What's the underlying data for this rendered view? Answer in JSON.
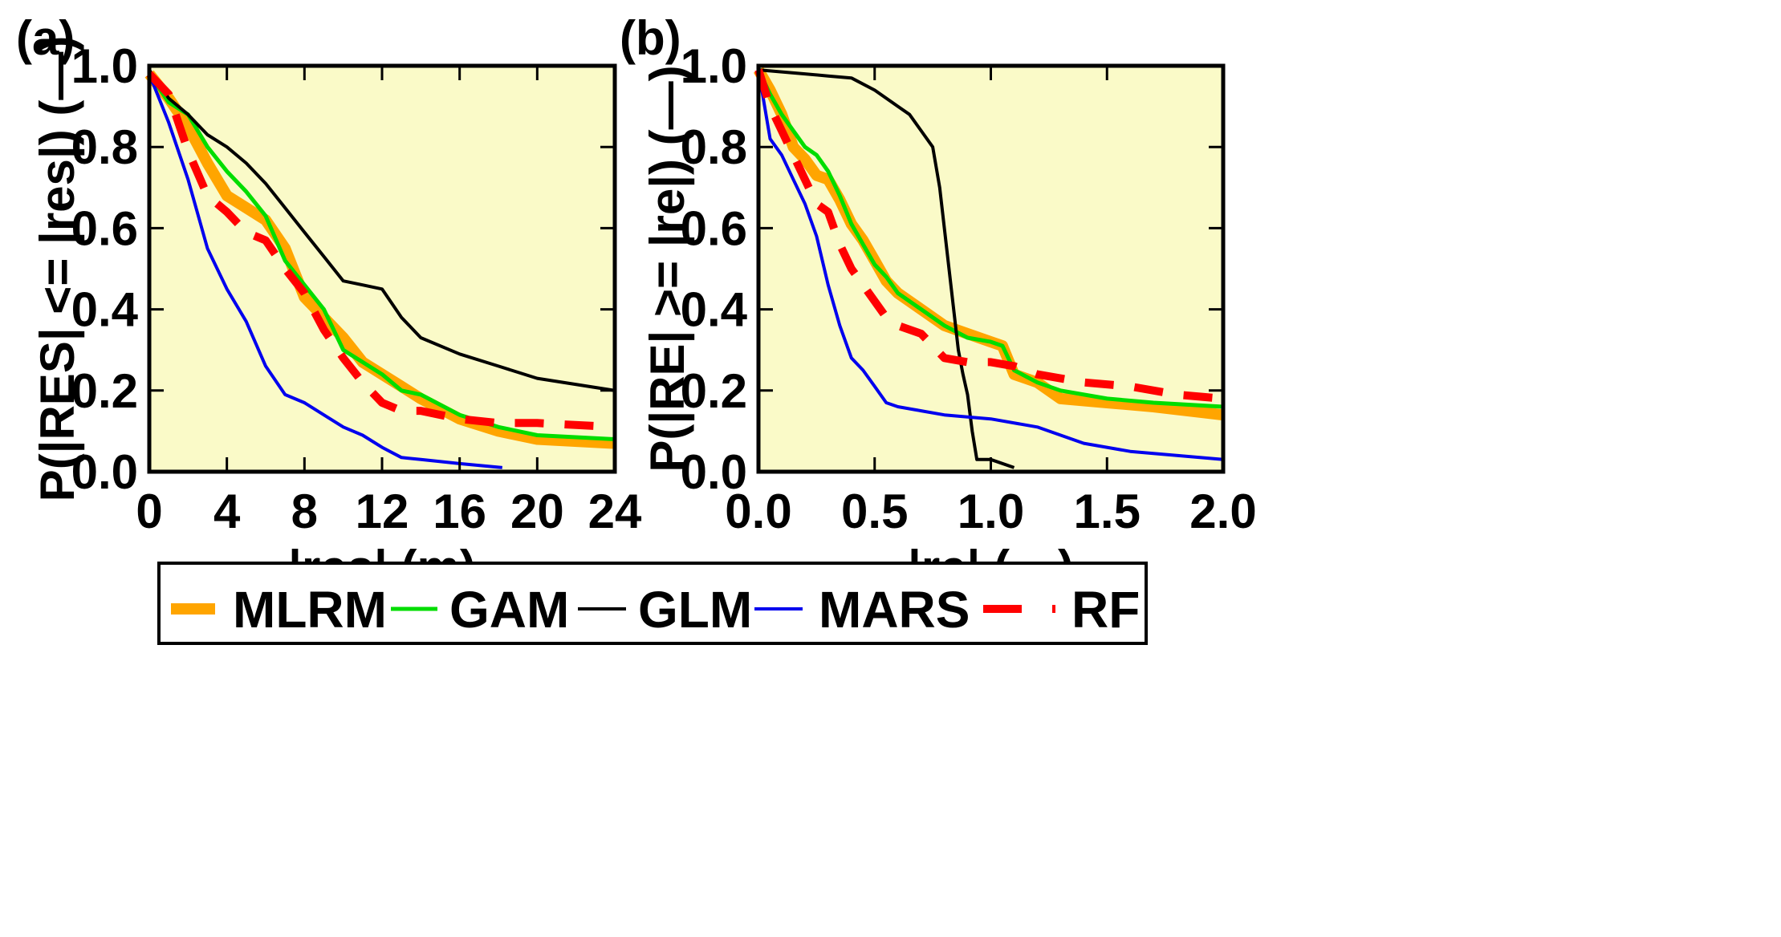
{
  "chart_data": [
    {
      "type": "line",
      "panel_label": "(a)",
      "xlabel": "|res| (m)",
      "ylabel": "P(|RES| <= |res|) (—)",
      "xlim": [
        0,
        24
      ],
      "ylim": [
        0,
        1
      ],
      "xticks": [
        "0",
        "4",
        "8",
        "12",
        "16",
        "20",
        "24"
      ],
      "yticks": [
        "0.0",
        "0.2",
        "0.4",
        "0.6",
        "0.8",
        "1.0"
      ],
      "background": "#fafac8",
      "series": [
        {
          "name": "MLRM",
          "x": [
            0,
            1,
            2,
            3,
            4,
            5,
            6,
            7,
            8,
            9,
            10,
            11,
            12,
            13,
            14,
            16,
            18,
            20,
            24
          ],
          "y": [
            0.98,
            0.92,
            0.85,
            0.76,
            0.68,
            0.65,
            0.62,
            0.55,
            0.43,
            0.38,
            0.33,
            0.27,
            0.24,
            0.21,
            0.18,
            0.13,
            0.1,
            0.08,
            0.07
          ]
        },
        {
          "name": "GAM",
          "x": [
            0,
            1,
            2,
            3,
            4,
            5,
            6,
            7,
            8,
            9,
            10,
            11,
            12,
            13,
            14,
            16,
            18,
            20,
            24
          ],
          "y": [
            0.98,
            0.91,
            0.88,
            0.8,
            0.74,
            0.69,
            0.63,
            0.52,
            0.46,
            0.4,
            0.3,
            0.27,
            0.24,
            0.2,
            0.19,
            0.14,
            0.11,
            0.09,
            0.08
          ]
        },
        {
          "name": "GLM",
          "x": [
            0,
            1,
            2,
            3,
            4,
            5,
            6,
            7,
            8,
            9,
            10,
            11,
            12,
            13,
            14,
            16,
            18,
            20,
            24
          ],
          "y": [
            0.99,
            0.92,
            0.88,
            0.83,
            0.8,
            0.76,
            0.71,
            0.65,
            0.59,
            0.53,
            0.47,
            0.46,
            0.45,
            0.38,
            0.33,
            0.29,
            0.26,
            0.23,
            0.2
          ]
        },
        {
          "name": "MARS",
          "x": [
            0,
            1,
            2,
            3,
            4,
            5,
            6,
            7,
            8,
            9,
            10,
            11,
            12,
            13,
            14,
            16,
            18.2
          ],
          "y": [
            0.98,
            0.86,
            0.72,
            0.55,
            0.45,
            0.37,
            0.26,
            0.19,
            0.17,
            0.14,
            0.11,
            0.09,
            0.06,
            0.035,
            0.03,
            0.02,
            0.01
          ]
        },
        {
          "name": "RF",
          "x": [
            0,
            1,
            2,
            3,
            4,
            5,
            6,
            7,
            8,
            9,
            10,
            11,
            12,
            13,
            14,
            16,
            18,
            20,
            24
          ],
          "y": [
            0.98,
            0.93,
            0.79,
            0.68,
            0.64,
            0.59,
            0.57,
            0.5,
            0.44,
            0.35,
            0.28,
            0.22,
            0.17,
            0.15,
            0.15,
            0.13,
            0.12,
            0.12,
            0.11
          ]
        }
      ]
    },
    {
      "type": "line",
      "panel_label": "(b)",
      "xlabel": "|re| (—)",
      "ylabel": "P(|RE| >= |re|) (—)",
      "xlim": [
        0,
        2
      ],
      "ylim": [
        0,
        1
      ],
      "xticks": [
        "0.0",
        "0.5",
        "1.0",
        "1.5",
        "2.0"
      ],
      "yticks": [
        "0.0",
        "0.2",
        "0.4",
        "0.6",
        "0.8",
        "1.0"
      ],
      "background": "#fafac8",
      "series": [
        {
          "name": "MLRM",
          "x": [
            0,
            0.05,
            0.1,
            0.15,
            0.2,
            0.25,
            0.3,
            0.35,
            0.4,
            0.45,
            0.5,
            0.55,
            0.6,
            0.7,
            0.8,
            0.9,
            1.0,
            1.05,
            1.1,
            1.2,
            1.3,
            1.5,
            1.7,
            2.0
          ],
          "y": [
            0.99,
            0.94,
            0.88,
            0.8,
            0.77,
            0.73,
            0.72,
            0.67,
            0.61,
            0.57,
            0.52,
            0.47,
            0.44,
            0.4,
            0.36,
            0.34,
            0.32,
            0.31,
            0.24,
            0.22,
            0.18,
            0.17,
            0.16,
            0.14
          ]
        },
        {
          "name": "GAM",
          "x": [
            0,
            0.05,
            0.1,
            0.15,
            0.2,
            0.25,
            0.3,
            0.35,
            0.4,
            0.45,
            0.5,
            0.55,
            0.6,
            0.7,
            0.8,
            0.9,
            1.0,
            1.05,
            1.1,
            1.2,
            1.3,
            1.5,
            1.7,
            2.0
          ],
          "y": [
            0.99,
            0.93,
            0.88,
            0.84,
            0.8,
            0.78,
            0.74,
            0.68,
            0.61,
            0.56,
            0.51,
            0.48,
            0.44,
            0.4,
            0.36,
            0.33,
            0.32,
            0.31,
            0.25,
            0.22,
            0.2,
            0.18,
            0.17,
            0.16
          ]
        },
        {
          "name": "GLM",
          "x": [
            0,
            0.1,
            0.2,
            0.3,
            0.4,
            0.5,
            0.6,
            0.65,
            0.7,
            0.75,
            0.78,
            0.8,
            0.82,
            0.84,
            0.86,
            0.88,
            0.9,
            0.92,
            0.94,
            1.0,
            1.1
          ],
          "y": [
            0.99,
            0.985,
            0.98,
            0.975,
            0.97,
            0.94,
            0.9,
            0.88,
            0.84,
            0.8,
            0.7,
            0.6,
            0.5,
            0.4,
            0.3,
            0.24,
            0.19,
            0.1,
            0.03,
            0.03,
            0.01
          ]
        },
        {
          "name": "MARS",
          "x": [
            0,
            0.05,
            0.1,
            0.15,
            0.2,
            0.25,
            0.3,
            0.35,
            0.4,
            0.45,
            0.5,
            0.55,
            0.6,
            0.7,
            0.8,
            1.0,
            1.2,
            1.4,
            1.6,
            1.8,
            2.0
          ],
          "y": [
            0.99,
            0.82,
            0.78,
            0.72,
            0.66,
            0.58,
            0.46,
            0.36,
            0.28,
            0.25,
            0.21,
            0.17,
            0.16,
            0.15,
            0.14,
            0.13,
            0.11,
            0.07,
            0.05,
            0.04,
            0.03
          ]
        },
        {
          "name": "RF",
          "x": [
            0,
            0.05,
            0.1,
            0.15,
            0.2,
            0.25,
            0.3,
            0.35,
            0.4,
            0.45,
            0.5,
            0.55,
            0.6,
            0.7,
            0.8,
            0.9,
            1.0,
            1.1,
            1.2,
            1.4,
            1.6,
            1.8,
            2.0
          ],
          "y": [
            0.99,
            0.9,
            0.84,
            0.78,
            0.72,
            0.66,
            0.64,
            0.56,
            0.5,
            0.46,
            0.42,
            0.38,
            0.36,
            0.34,
            0.28,
            0.27,
            0.27,
            0.26,
            0.24,
            0.22,
            0.21,
            0.19,
            0.18
          ]
        }
      ]
    }
  ],
  "legend": [
    {
      "name": "MLRM",
      "color": "#ffa500"
    },
    {
      "name": "GAM",
      "color": "#00dd00"
    },
    {
      "name": "GLM",
      "color": "#000000"
    },
    {
      "name": "MARS",
      "color": "#0000ee"
    },
    {
      "name": "RF",
      "color": "#ff0000"
    }
  ]
}
